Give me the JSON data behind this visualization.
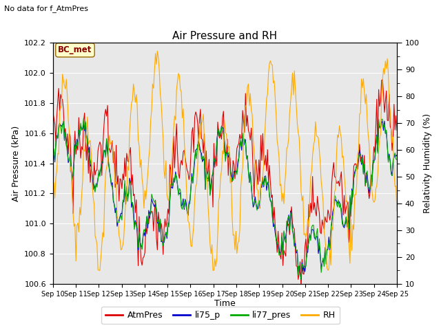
{
  "title": "Air Pressure and RH",
  "no_data_text": "No data for f_AtmPres",
  "station_label": "BC_met",
  "xlabel": "Time",
  "ylabel_left": "Air Pressure (kPa)",
  "ylabel_right": "Relativity Humidity (%)",
  "ylim_left": [
    100.6,
    102.2
  ],
  "ylim_right": [
    10,
    100
  ],
  "yticks_left": [
    100.6,
    100.8,
    101.0,
    101.2,
    101.4,
    101.6,
    101.8,
    102.0,
    102.2
  ],
  "yticks_right": [
    10,
    20,
    30,
    40,
    50,
    60,
    70,
    80,
    90,
    100
  ],
  "xtick_labels": [
    "Sep 10",
    "Sep 11",
    "Sep 12",
    "Sep 13",
    "Sep 14",
    "Sep 15",
    "Sep 16",
    "Sep 17",
    "Sep 18",
    "Sep 19",
    "Sep 20",
    "Sep 21",
    "Sep 22",
    "Sep 23",
    "Sep 24",
    "Sep 25"
  ],
  "colors": {
    "AtmPres": "#dd0000",
    "li75_p": "#0000cc",
    "li77_pres": "#00aa00",
    "RH": "#ffaa00"
  },
  "background_color": "#e8e8e8",
  "legend_labels": [
    "AtmPres",
    "li75_p",
    "li77_pres",
    "RH"
  ]
}
